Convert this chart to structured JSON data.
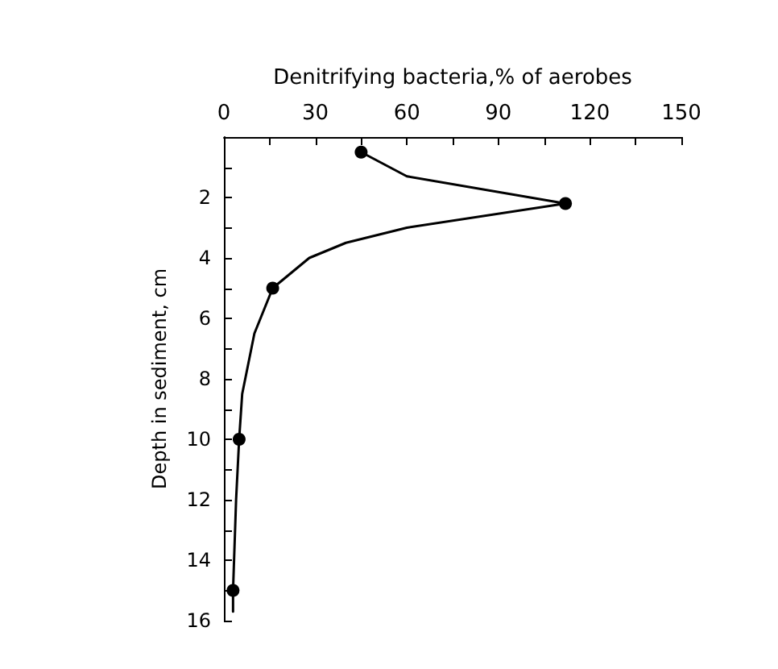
{
  "chart_data": {
    "type": "line",
    "xlabel": "Denitrifying bacteria,% of aerobes",
    "ylabel": "Depth in sediment, cm",
    "xlim": [
      0,
      150
    ],
    "xticks": [
      0,
      {
        "value": 15,
        "label": null
      },
      30,
      {
        "value": 45,
        "label": null
      },
      60,
      {
        "value": 75,
        "label": null
      },
      90,
      {
        "value": 105,
        "label": null
      },
      120,
      {
        "value": 135,
        "label": null
      },
      150
    ],
    "ylim": [
      16,
      0
    ],
    "yticks": [
      {
        "value": 0,
        "label": null
      },
      {
        "value": 1,
        "label": null
      },
      2,
      {
        "value": 3,
        "label": null
      },
      4,
      {
        "value": 5,
        "label": null
      },
      6,
      {
        "value": 7,
        "label": null
      },
      8,
      {
        "value": 9,
        "label": null
      },
      10,
      {
        "value": 11,
        "label": null
      },
      12,
      {
        "value": 13,
        "label": null
      },
      14,
      {
        "value": 15,
        "label": null
      },
      16
    ],
    "grid": false,
    "series": [
      {
        "color": "#000000",
        "marker": "none",
        "line_style": "solid",
        "x": [
          45,
          60,
          112,
          60,
          40,
          28,
          16,
          10,
          6,
          5,
          4,
          3,
          3
        ],
        "values": [
          0.5,
          1.3,
          2.2,
          3.0,
          3.5,
          4.0,
          5,
          6.5,
          8.5,
          10,
          12,
          15,
          15.7
        ]
      },
      {
        "type": "scatter",
        "color": "#000000",
        "marker": "circle",
        "x": [
          45,
          112,
          16,
          5,
          3
        ],
        "values": [
          0.5,
          2.2,
          5,
          10,
          15
        ]
      }
    ]
  }
}
